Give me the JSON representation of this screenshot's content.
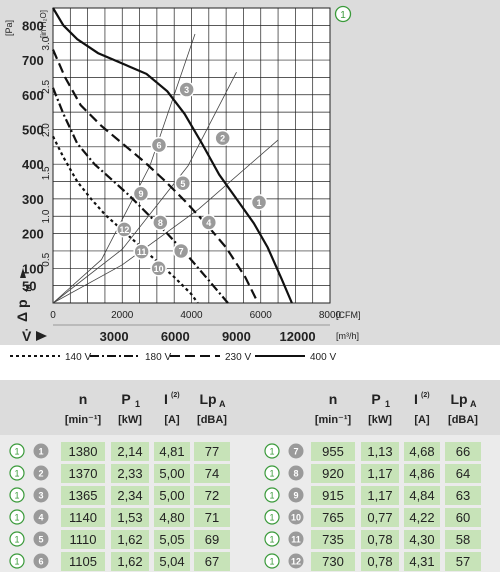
{
  "colors": {
    "panel_bg": "#dcdcdc",
    "grid": "#222222",
    "curve": "#111111",
    "system_line": "#444444",
    "marker_fill": "#9a9a9a",
    "marker_text": "#ffffff",
    "badge_green": "#3a9a3a",
    "cell_green": "#c7e3b8",
    "header_bg": "#dcdcdc",
    "table_bg": "#ebebeb"
  },
  "chart_data": {
    "type": "line",
    "curve_id": "1",
    "x_ticks_cfm": [
      0,
      2000,
      4000,
      6000,
      8000
    ],
    "x_unit_cfm": "[CFM]",
    "x_ticks_m3h": [
      3000,
      6000,
      9000,
      12000
    ],
    "x_unit_m3h": "[m³/h]",
    "x_label": "V̇",
    "y_ticks_pa": [
      0,
      50,
      100,
      150,
      200,
      250,
      300,
      350,
      400,
      450,
      500,
      550,
      600,
      650,
      700,
      750,
      800
    ],
    "y_tick_labels_pa": [
      "50",
      "100",
      "200",
      "300",
      "400",
      "500",
      "600",
      "700",
      "800"
    ],
    "y_unit_pa": "[Pa]",
    "y_tick_labels_inh2o": [
      "0.5",
      "1.0",
      "1.5",
      "2.0",
      "2.5",
      "3.0"
    ],
    "y_unit_inh2o": "[in H₂O]",
    "y_label": "Δ p",
    "y_label_sub": "fa",
    "xlim": [
      0,
      8000
    ],
    "ylim": [
      0,
      850
    ],
    "series": [
      {
        "name": "140 V",
        "dash": "3,3",
        "points": [
          [
            0,
            480
          ],
          [
            300,
            420
          ],
          [
            700,
            350
          ],
          [
            1100,
            300
          ],
          [
            1500,
            255
          ],
          [
            2000,
            210
          ],
          [
            2500,
            165
          ],
          [
            3000,
            120
          ],
          [
            3500,
            75
          ],
          [
            4000,
            25
          ],
          [
            4180,
            0
          ]
        ]
      },
      {
        "name": "180 V",
        "dash": "9,3,2,3",
        "points": [
          [
            0,
            620
          ],
          [
            300,
            545
          ],
          [
            700,
            460
          ],
          [
            1200,
            400
          ],
          [
            1700,
            355
          ],
          [
            2200,
            310
          ],
          [
            2700,
            260
          ],
          [
            3300,
            200
          ],
          [
            3900,
            135
          ],
          [
            4500,
            65
          ],
          [
            5050,
            0
          ]
        ]
      },
      {
        "name": "230 V",
        "dash": "10,5",
        "points": [
          [
            0,
            730
          ],
          [
            350,
            650
          ],
          [
            800,
            570
          ],
          [
            1400,
            510
          ],
          [
            2000,
            460
          ],
          [
            2600,
            410
          ],
          [
            3200,
            355
          ],
          [
            3800,
            295
          ],
          [
            4400,
            230
          ],
          [
            5000,
            160
          ],
          [
            5550,
            75
          ],
          [
            5920,
            0
          ]
        ]
      },
      {
        "name": "400 V",
        "dash": "",
        "points": [
          [
            0,
            850
          ],
          [
            300,
            800
          ],
          [
            700,
            760
          ],
          [
            1300,
            720
          ],
          [
            2000,
            690
          ],
          [
            2700,
            660
          ],
          [
            3300,
            610
          ],
          [
            3800,
            545
          ],
          [
            4300,
            460
          ],
          [
            4800,
            370
          ],
          [
            5300,
            300
          ],
          [
            5800,
            230
          ],
          [
            6200,
            160
          ],
          [
            6600,
            70
          ],
          [
            6900,
            0
          ]
        ]
      }
    ],
    "system_lines": [
      {
        "points": [
          [
            0,
            0
          ],
          [
            2000,
            110
          ],
          [
            4200,
            270
          ],
          [
            6500,
            470
          ]
        ]
      },
      {
        "points": [
          [
            0,
            0
          ],
          [
            2000,
            155
          ],
          [
            3900,
            395
          ],
          [
            5300,
            665
          ]
        ]
      },
      {
        "points": [
          [
            0,
            0
          ],
          [
            1400,
            125
          ],
          [
            2800,
            395
          ],
          [
            4100,
            775
          ]
        ]
      }
    ],
    "operating_points": [
      {
        "id": "1",
        "x": 5950,
        "y": 290
      },
      {
        "id": "2",
        "x": 4900,
        "y": 475
      },
      {
        "id": "3",
        "x": 3860,
        "y": 615
      },
      {
        "id": "4",
        "x": 4500,
        "y": 232
      },
      {
        "id": "5",
        "x": 3750,
        "y": 345
      },
      {
        "id": "6",
        "x": 3060,
        "y": 455
      },
      {
        "id": "7",
        "x": 3700,
        "y": 150
      },
      {
        "id": "8",
        "x": 3100,
        "y": 232
      },
      {
        "id": "9",
        "x": 2540,
        "y": 315
      },
      {
        "id": "10",
        "x": 3050,
        "y": 100
      },
      {
        "id": "11",
        "x": 2560,
        "y": 148
      },
      {
        "id": "12",
        "x": 2060,
        "y": 212
      }
    ]
  },
  "table": {
    "headers": {
      "n": "n",
      "n_unit": "[min⁻¹]",
      "p": "P",
      "p_sub": "1",
      "p_unit": "[kW]",
      "i": "I",
      "i_sup": "(2)",
      "i_unit": "[A]",
      "lp": "Lp",
      "lp_sub": "A",
      "lp_unit": "[dBA]"
    },
    "left_rows": [
      {
        "curve": "1",
        "point": "1",
        "n": "1380",
        "p": "2,14",
        "i": "4,81",
        "lp": "77"
      },
      {
        "curve": "1",
        "point": "2",
        "n": "1370",
        "p": "2,33",
        "i": "5,00",
        "lp": "74"
      },
      {
        "curve": "1",
        "point": "3",
        "n": "1365",
        "p": "2,34",
        "i": "5,00",
        "lp": "72"
      },
      {
        "curve": "1",
        "point": "4",
        "n": "1140",
        "p": "1,53",
        "i": "4,80",
        "lp": "71"
      },
      {
        "curve": "1",
        "point": "5",
        "n": "1110",
        "p": "1,62",
        "i": "5,05",
        "lp": "69"
      },
      {
        "curve": "1",
        "point": "6",
        "n": "1105",
        "p": "1,62",
        "i": "5,04",
        "lp": "67"
      }
    ],
    "right_rows": [
      {
        "curve": "1",
        "point": "7",
        "n": "955",
        "p": "1,13",
        "i": "4,68",
        "lp": "66"
      },
      {
        "curve": "1",
        "point": "8",
        "n": "920",
        "p": "1,17",
        "i": "4,86",
        "lp": "64"
      },
      {
        "curve": "1",
        "point": "9",
        "n": "915",
        "p": "1,17",
        "i": "4,84",
        "lp": "63"
      },
      {
        "curve": "1",
        "point": "10",
        "n": "765",
        "p": "0,77",
        "i": "4,22",
        "lp": "60"
      },
      {
        "curve": "1",
        "point": "11",
        "n": "735",
        "p": "0,78",
        "i": "4,30",
        "lp": "58"
      },
      {
        "curve": "1",
        "point": "12",
        "n": "730",
        "p": "0,78",
        "i": "4,31",
        "lp": "57"
      }
    ]
  }
}
